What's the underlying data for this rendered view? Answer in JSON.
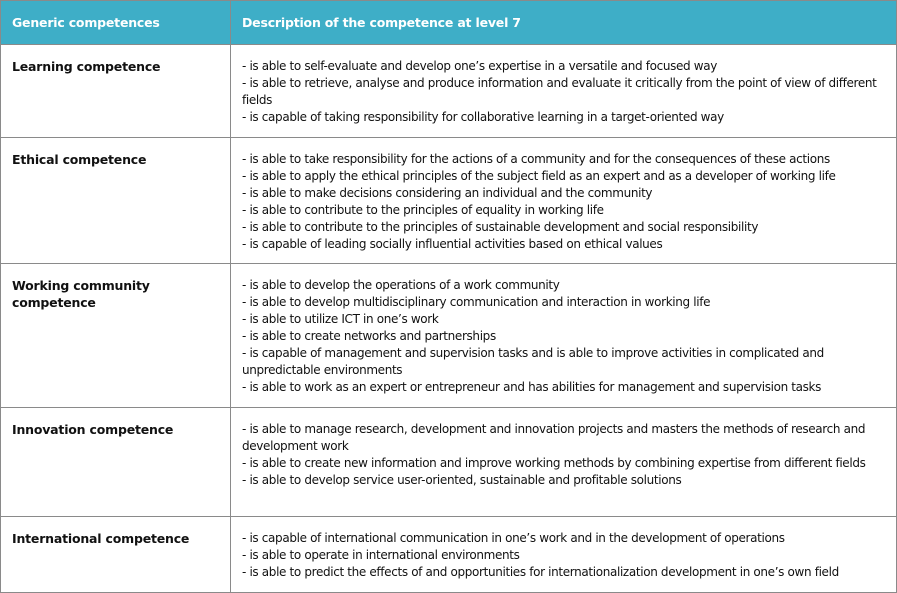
{
  "header": {
    "col1": "Generic competences",
    "col2": "Description of the competence at level 7"
  },
  "header_color": "#3eaec7",
  "rows": [
    {
      "name": "Learning competence",
      "items": [
        "- is able to self-evaluate and develop one’s expertise in a versatile and focused way",
        "- is able to retrieve, analyse and produce information and evaluate it critically from the point of view of different fields",
        "- is capable of taking responsibility for collaborative learning in a target-oriented way"
      ]
    },
    {
      "name": "Ethical competence",
      "items": [
        "- is able to take responsibility for the actions of a community and for the consequences of these actions",
        "- is able to apply the ethical principles of the subject field as an expert and as a developer of working life",
        "- is able to make decisions considering an individual and the community",
        "- is able to contribute to the principles of equality in working life",
        "- is able to contribute to the principles of sustainable development and social responsibility",
        "- is capable of leading socially influential activities based on ethical values"
      ]
    },
    {
      "name": "Working community competence",
      "items": [
        "- is able to develop the operations of a work community",
        "- is able to develop multidisciplinary communication and interaction in working life",
        "- is able to utilize ICT in one’s work",
        "- is able to create networks and partnerships",
        "- is capable of management and supervision tasks and is able to improve activities in complicated and unpredictable environments",
        "- is able to work as an expert or entrepreneur and has abilities for management and supervision tasks"
      ]
    },
    {
      "name": "Innovation competence",
      "items": [
        "- is able to manage research, development and innovation projects and masters the methods of research and development work",
        "- is able to create new information and improve working methods by combining expertise from different fields",
        "- is able to develop service user-oriented, sustainable and profitable solutions"
      ]
    },
    {
      "name": "International competence",
      "items": [
        "- is capable of international communication in one’s work and in the development of operations",
        "- is able to operate in international environments",
        "- is able to predict the effects of and opportunities for internationalization development in one’s own field"
      ]
    }
  ]
}
